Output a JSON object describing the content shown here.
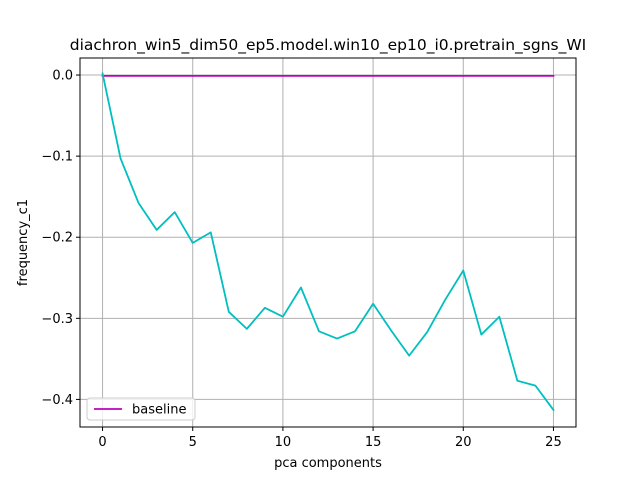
{
  "chart_data": {
    "type": "line",
    "title": "diachron_win5_dim50_ep5.model.win10_ep10_i0.pretrain_sgns_WI",
    "xlabel": "pca components",
    "ylabel": "frequency_c1",
    "xlim": [
      -1.25,
      26.25
    ],
    "ylim": [
      -0.434,
      0.021
    ],
    "xticks": [
      0,
      5,
      10,
      15,
      20,
      25
    ],
    "yticks": [
      0.0,
      -0.1,
      -0.2,
      -0.3,
      -0.4
    ],
    "xtick_labels": [
      "0",
      "5",
      "10",
      "15",
      "20",
      "25"
    ],
    "ytick_labels": [
      "0.0",
      "−0.1",
      "−0.2",
      "−0.3",
      "−0.4"
    ],
    "grid": true,
    "legend_position": "lower-left",
    "series": [
      {
        "name": "baseline",
        "color": "#bf00bf",
        "x": [
          0,
          25
        ],
        "y": [
          -0.001,
          -0.001
        ]
      },
      {
        "color": "#00bfbf",
        "x": [
          0,
          1,
          2,
          3,
          4,
          5,
          6,
          7,
          8,
          9,
          10,
          11,
          12,
          13,
          14,
          15,
          16,
          17,
          18,
          19,
          20,
          21,
          22,
          23,
          24,
          25
        ],
        "y": [
          0.002,
          -0.103,
          -0.158,
          -0.191,
          -0.169,
          -0.207,
          -0.194,
          -0.292,
          -0.313,
          -0.287,
          -0.298,
          -0.262,
          -0.316,
          -0.325,
          -0.316,
          -0.282,
          -0.315,
          -0.346,
          -0.317,
          -0.277,
          -0.241,
          -0.32,
          -0.298,
          -0.377,
          -0.383,
          -0.413
        ]
      }
    ]
  }
}
